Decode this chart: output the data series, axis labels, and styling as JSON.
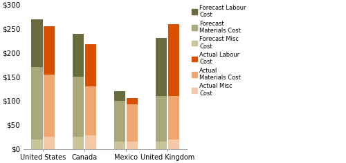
{
  "categories": [
    "United States",
    "Canada",
    "Mexico",
    "United Kingdom"
  ],
  "forecast": {
    "misc": [
      20,
      25,
      15,
      15
    ],
    "materials": [
      150,
      125,
      85,
      95
    ],
    "labour": [
      100,
      90,
      20,
      120
    ]
  },
  "actual": {
    "misc": [
      25,
      28,
      15,
      20
    ],
    "materials": [
      130,
      102,
      78,
      90
    ],
    "labour": [
      100,
      88,
      13,
      150
    ]
  },
  "colors": {
    "forecast_misc": "#c9c49a",
    "forecast_materials": "#a8a87a",
    "forecast_labour": "#6b6b40",
    "actual_misc": "#f5c8a8",
    "actual_materials": "#f0a870",
    "actual_labour": "#d94f00"
  },
  "ylim": [
    0,
    300
  ],
  "yticks": [
    0,
    50,
    100,
    150,
    200,
    250,
    300
  ],
  "bar_width": 0.28,
  "legend_labels": [
    "Forecast Labour\nCost",
    "Forecast\nMaterials Cost",
    "Forecast Misc\nCost",
    "Actual Labour\nCost",
    "Actual\nMaterials Cost",
    "Actual Misc\nCost"
  ],
  "figsize": [
    5.0,
    2.36
  ],
  "dpi": 100
}
